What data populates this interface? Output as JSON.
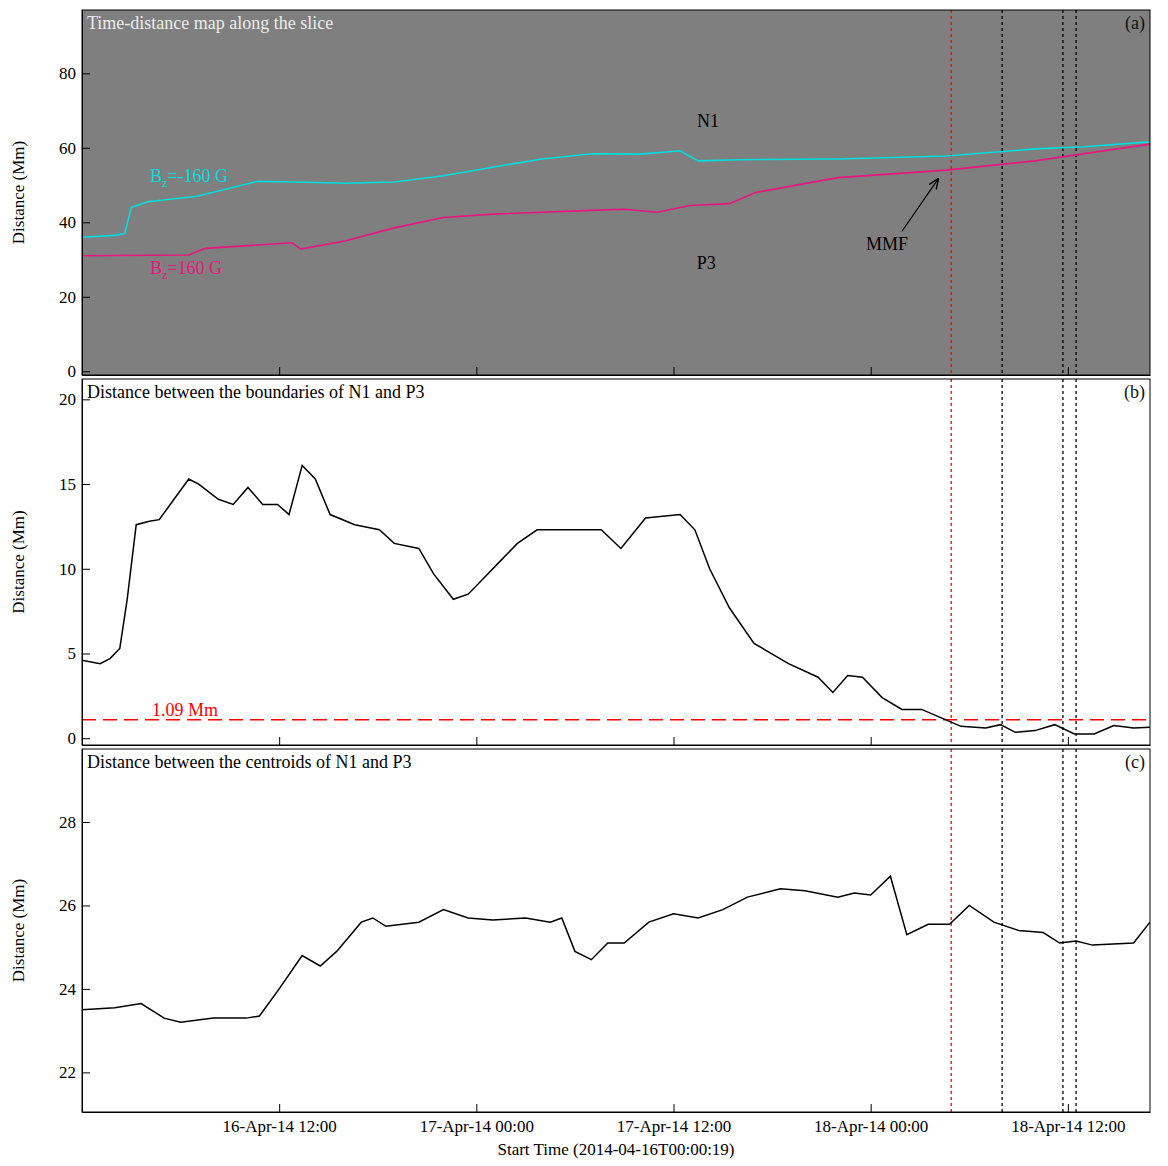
{
  "chart_data": [
    {
      "type": "map",
      "title": "Time-distance map along the slice",
      "panel_label": "(a)",
      "y_label": "Distance (Mm)",
      "xlim": [
        0,
        65
      ],
      "xticks": [
        12,
        24,
        36,
        48,
        60
      ],
      "ylim": [
        -1,
        97
      ],
      "yticks": [
        0,
        20,
        40,
        60,
        80
      ],
      "tick_labels": "y",
      "series": [
        {
          "name": "Bz=-160 G",
          "color": "#00dede",
          "x": [
            0,
            2,
            2.6,
            3,
            4,
            7,
            10.7,
            13,
            16,
            19,
            22,
            25,
            28,
            31,
            34,
            36.4,
            37.5,
            40,
            46,
            52.6,
            58,
            61,
            65
          ],
          "values": [
            36,
            36.5,
            37,
            44,
            45.5,
            47,
            51,
            50.8,
            50.5,
            50.8,
            52.5,
            54.8,
            57,
            58.4,
            58.3,
            59.2,
            56.5,
            56.8,
            57,
            57.8,
            59.7,
            60.3,
            61.6
          ]
        },
        {
          "name": "Bz=160 G",
          "color": "#e8177d",
          "x": [
            0,
            6.5,
            7.5,
            12.8,
            13.3,
            16,
            19,
            22,
            25,
            31,
            33,
            35,
            37,
            39.4,
            41,
            46,
            52.6,
            58,
            65
          ],
          "values": [
            31,
            31.2,
            33,
            34.5,
            32.8,
            35,
            38.5,
            41.3,
            42.2,
            43.2,
            43.5,
            42.7,
            44.5,
            45,
            48,
            52,
            54,
            56.5,
            61
          ]
        }
      ],
      "annotations": [
        {
          "text": "N1",
          "x": 38.1,
          "y": 67.3
        },
        {
          "text": "P3",
          "x": 38,
          "y": 29.2
        },
        {
          "text": "MMF",
          "x": 49,
          "y": 34.3,
          "arrow_to": [
            52.1,
            51.6
          ]
        }
      ],
      "vlines": {
        "x": [
          52.9,
          56,
          59.7,
          60.5
        ],
        "colors": [
          "#ff0000",
          "#000000",
          "#000000",
          "#000000"
        ]
      }
    },
    {
      "type": "line",
      "title": "Distance between the boundaries of N1 and P3",
      "panel_label": "(b)",
      "y_label": "Distance (Mm)",
      "xlim": [
        0,
        65
      ],
      "xticks": [
        12,
        24,
        36,
        48,
        60
      ],
      "ylim": [
        -0.4,
        21.2
      ],
      "yticks": [
        0,
        5,
        10,
        15,
        20
      ],
      "tick_labels": "y",
      "series": [
        {
          "color": "#000000",
          "x": [
            0,
            1.1,
            1.7,
            2.3,
            2.75,
            3.3,
            4.1,
            4.7,
            5.6,
            6.5,
            7.1,
            8.3,
            9.2,
            10.1,
            11,
            11.9,
            12.6,
            13.4,
            14.2,
            15.1,
            16.6,
            18.1,
            19,
            20.5,
            21.4,
            22.6,
            23.5,
            24.4,
            25.6,
            26.5,
            27.7,
            28.9,
            30.4,
            31.6,
            32.8,
            34.3,
            36.4,
            37.3,
            38.2,
            39.4,
            40.9,
            43,
            44.8,
            45.7,
            46.6,
            47.5,
            48.7,
            49.9,
            51.1,
            52.3,
            53.5,
            55,
            55.9,
            56.8,
            58,
            59.2,
            60.4,
            61.6,
            62.8,
            64,
            65
          ],
          "values": [
            4.6,
            4.4,
            4.7,
            5.3,
            8.2,
            12.6,
            12.8,
            12.9,
            14.1,
            15.3,
            15,
            14.1,
            13.8,
            14.8,
            13.8,
            13.8,
            13.2,
            16.1,
            15.3,
            13.2,
            12.6,
            12.3,
            11.5,
            11.2,
            9.7,
            8.2,
            8.5,
            9.4,
            10.6,
            11.5,
            12.3,
            12.3,
            12.3,
            12.3,
            11.2,
            13,
            13.2,
            12.3,
            10,
            7.7,
            5.6,
            4.4,
            3.6,
            2.7,
            3.7,
            3.6,
            2.4,
            1.7,
            1.7,
            1.2,
            0.7,
            0.6,
            0.8,
            0.35,
            0.45,
            0.8,
            0.25,
            0.25,
            0.75,
            0.6,
            0.65
          ]
        }
      ],
      "hline": {
        "y": 1.09,
        "label": "1.09 Mm",
        "color": "#ff0000"
      },
      "vlines": {
        "x": [
          52.9,
          56,
          59.7,
          60.5
        ],
        "colors": [
          "#ff0000",
          "#000000",
          "#000000",
          "#000000"
        ]
      }
    },
    {
      "type": "line",
      "title": "Distance between the centroids of N1 and P3",
      "panel_label": "(c)",
      "y_label": "Distance (Mm)",
      "x_label": "Start Time (2014-04-16T00:00:19)",
      "xlim": [
        0,
        65
      ],
      "xticks": [
        {
          "value": 12,
          "label": "16-Apr-14 12:00"
        },
        {
          "value": 24,
          "label": "17-Apr-14 00:00"
        },
        {
          "value": 36,
          "label": "17-Apr-14 12:00"
        },
        {
          "value": 48,
          "label": "18-Apr-14 00:00"
        },
        {
          "value": 60,
          "label": "18-Apr-14 12:00"
        }
      ],
      "ylim": [
        21.05,
        29.75
      ],
      "yticks": [
        22,
        24,
        26,
        28
      ],
      "series": [
        {
          "color": "#000000",
          "x": [
            0,
            2,
            3.6,
            5,
            6,
            8,
            10,
            10.8,
            12,
            13.4,
            14.5,
            15.5,
            17,
            17.7,
            18.5,
            20.5,
            22,
            23.5,
            25,
            27,
            28.5,
            29.2,
            30,
            31,
            32,
            33,
            34.5,
            36,
            37.5,
            39,
            40.5,
            42.5,
            44,
            46,
            47,
            48,
            49.2,
            50.2,
            51.5,
            52.8,
            54,
            55.5,
            57,
            58.5,
            59.5,
            60.5,
            61.5,
            64,
            65
          ],
          "values": [
            23.5,
            23.55,
            23.65,
            23.3,
            23.2,
            23.3,
            23.3,
            23.35,
            24,
            24.8,
            24.55,
            24.9,
            25.6,
            25.7,
            25.5,
            25.6,
            25.9,
            25.7,
            25.65,
            25.7,
            25.6,
            25.7,
            24.9,
            24.7,
            25.1,
            25.1,
            25.6,
            25.8,
            25.7,
            25.9,
            26.2,
            26.4,
            26.35,
            26.2,
            26.3,
            26.25,
            26.7,
            25.3,
            25.55,
            25.55,
            26,
            25.6,
            25.4,
            25.35,
            25.1,
            25.15,
            25.05,
            25.1,
            25.6
          ]
        }
      ],
      "vlines": {
        "x": [
          52.9,
          56,
          59.7,
          60.5
        ],
        "colors": [
          "#ff0000",
          "#000000",
          "#000000",
          "#000000"
        ]
      }
    }
  ]
}
